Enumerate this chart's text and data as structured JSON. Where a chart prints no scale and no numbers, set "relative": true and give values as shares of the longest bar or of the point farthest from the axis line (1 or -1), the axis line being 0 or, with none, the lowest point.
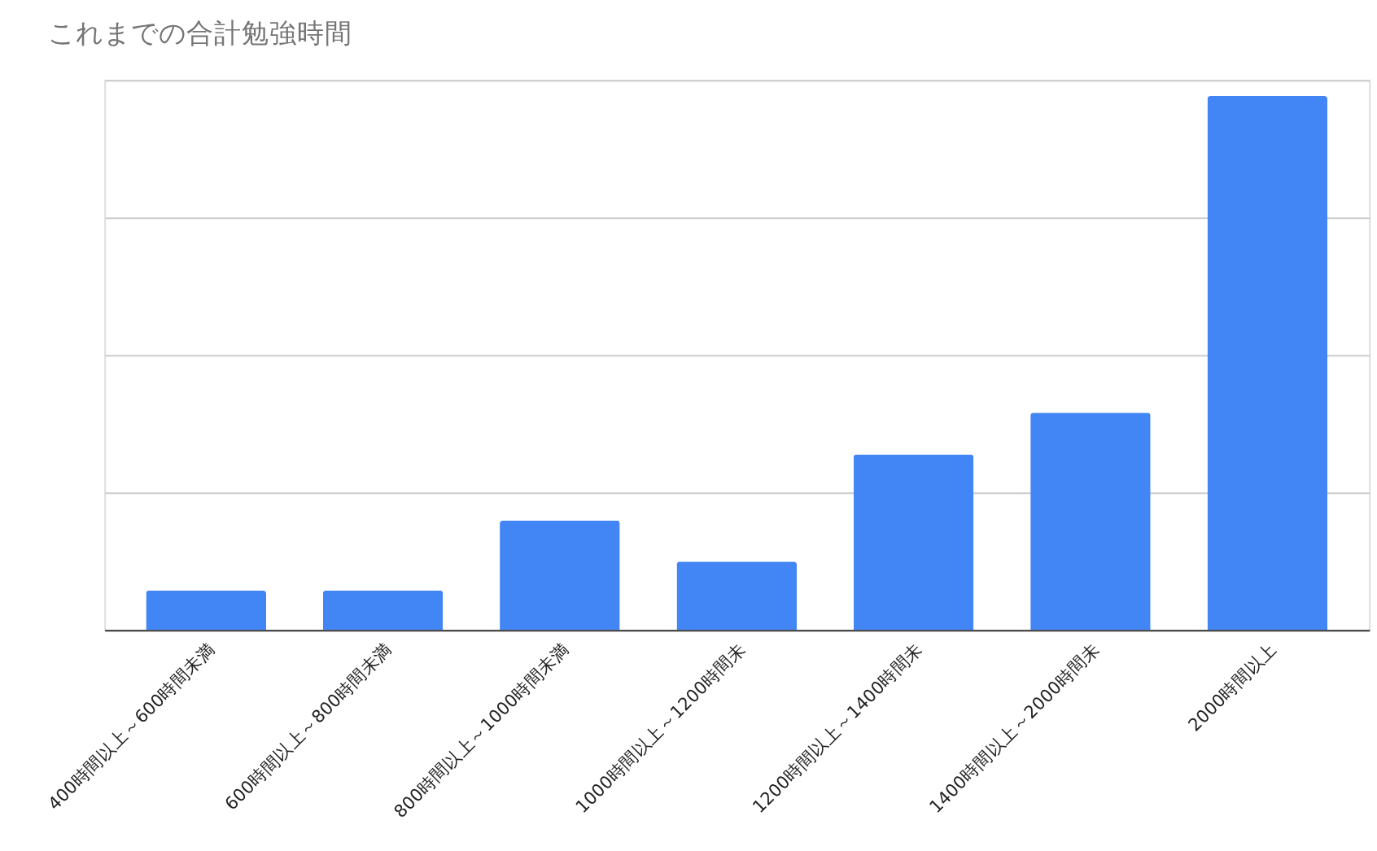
{
  "chart_data": {
    "type": "bar",
    "title": "これまでの合計勉強時間",
    "categories": [
      "400時間以上～600時間未満",
      "600時間以上～800時間未満",
      "800時間以上～1000時間未満",
      "1000時間以上～1200時間未",
      "1200時間以上～1400時間未",
      "1400時間以上～2000時間未",
      "2000時間以上"
    ],
    "values": [
      0.074,
      0.074,
      0.205,
      0.128,
      0.329,
      0.407,
      1
    ],
    "color": "#4285f4",
    "relative": true,
    "grid": "y"
  }
}
